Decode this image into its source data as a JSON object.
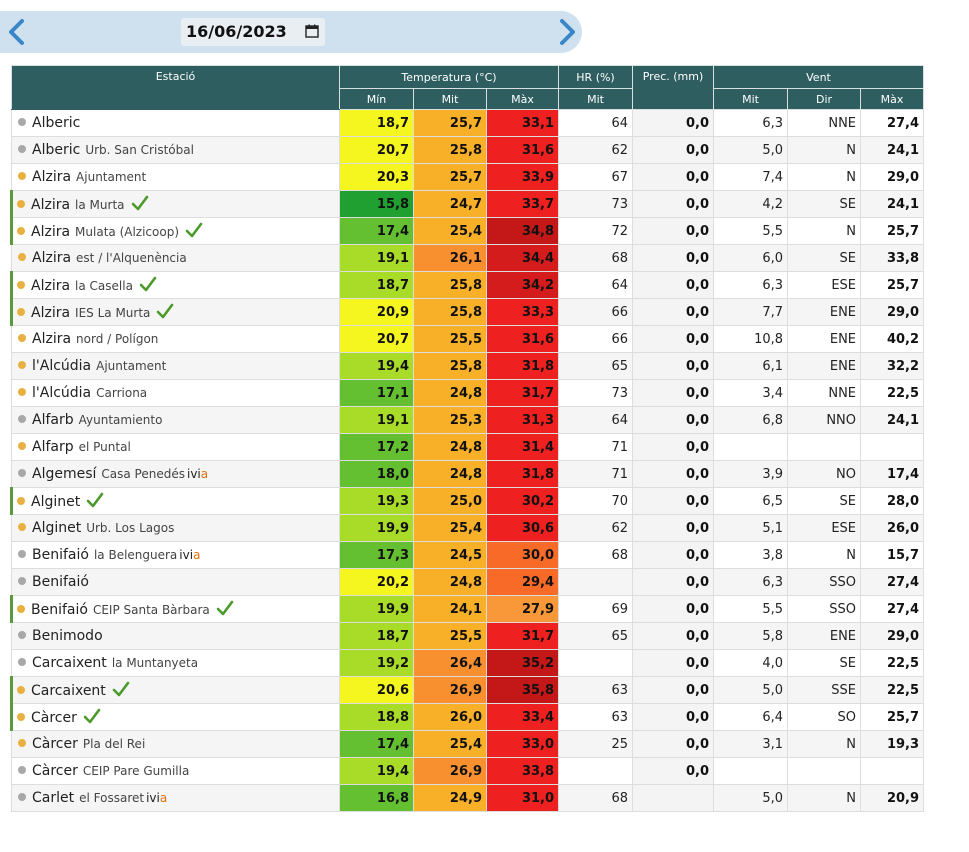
{
  "nav": {
    "date_value": "16/06/2023",
    "prev_icon": "chevron-left-icon",
    "next_icon": "chevron-right-icon",
    "calendar_icon": "calendar-icon"
  },
  "table": {
    "headers": {
      "station": "Estació",
      "temperature": "Temperatura (°C)",
      "hr": "HR (%)",
      "prec": "Prec. (mm)",
      "wind": "Vent"
    },
    "subheaders": {
      "tmin": "Mín",
      "tmit": "Mit",
      "tmax": "Màx",
      "hrmit": "Mit",
      "wmit": "Mit",
      "wdir": "Dir",
      "wmax": "Màx"
    },
    "colors": {
      "tmin": [
        "#f5f520",
        "#f5f520",
        "#f5f520",
        "#20a030",
        "#64c030",
        "#a8dc28",
        "#a8dc28",
        "#f5f520",
        "#f5f520",
        "#a8dc28",
        "#64c030",
        "#a8dc28",
        "#64c030",
        "#64c030",
        "#a8dc28",
        "#a8dc28",
        "#64c030",
        "#f5f520",
        "#a8dc28",
        "#a8dc28",
        "#a8dc28",
        "#f5f520",
        "#a8dc28",
        "#64c030",
        "#a8dc28",
        "#64c030"
      ],
      "tmit": [
        "#f8b028",
        "#f8b028",
        "#f8b028",
        "#f8b028",
        "#f8b028",
        "#f89030",
        "#f8b028",
        "#f8b028",
        "#f8b028",
        "#f8b028",
        "#f8b028",
        "#f8b028",
        "#f8b028",
        "#f8b028",
        "#f8b028",
        "#f8b028",
        "#f8b028",
        "#f8b028",
        "#f8b028",
        "#f8b028",
        "#f89030",
        "#f89030",
        "#f8b028",
        "#f8b028",
        "#f89030",
        "#f8b028"
      ],
      "tmax": [
        "#ee2020",
        "#ee2020",
        "#ee2020",
        "#ee2020",
        "#c41818",
        "#d41c1c",
        "#d41c1c",
        "#ee2020",
        "#ee2020",
        "#ee2020",
        "#ee2020",
        "#ee2020",
        "#ee2020",
        "#ee2020",
        "#ee2020",
        "#ee2020",
        "#f86a28",
        "#f86a28",
        "#f89838",
        "#ee2020",
        "#c41818",
        "#c41818",
        "#ee2020",
        "#ee2020",
        "#ee2020",
        "#ee2020"
      ]
    },
    "rows": [
      {
        "dot": "gray",
        "marked": false,
        "check": false,
        "name": "Alberic",
        "sub": "",
        "ivia": false,
        "tmin": "18,7",
        "tmit": "25,7",
        "tmax": "33,1",
        "hr": "64",
        "prec": "0,0",
        "wmit": "6,3",
        "wdir": "NNE",
        "wmax": "27,4"
      },
      {
        "dot": "gray",
        "marked": false,
        "check": false,
        "name": "Alberic",
        "sub": "Urb. San Cristóbal",
        "ivia": false,
        "tmin": "20,7",
        "tmit": "25,8",
        "tmax": "31,6",
        "hr": "62",
        "prec": "0,0",
        "wmit": "5,0",
        "wdir": "N",
        "wmax": "24,1"
      },
      {
        "dot": "orange",
        "marked": false,
        "check": false,
        "name": "Alzira",
        "sub": "Ajuntament",
        "ivia": false,
        "tmin": "20,3",
        "tmit": "25,7",
        "tmax": "33,9",
        "hr": "67",
        "prec": "0,0",
        "wmit": "7,4",
        "wdir": "N",
        "wmax": "29,0"
      },
      {
        "dot": "orange",
        "marked": true,
        "check": true,
        "name": "Alzira",
        "sub": "la Murta",
        "ivia": false,
        "tmin": "15,8",
        "tmit": "24,7",
        "tmax": "33,7",
        "hr": "73",
        "prec": "0,0",
        "wmit": "4,2",
        "wdir": "SE",
        "wmax": "24,1"
      },
      {
        "dot": "orange",
        "marked": true,
        "check": true,
        "name": "Alzira",
        "sub": "Mulata (Alzicoop)",
        "ivia": false,
        "tmin": "17,4",
        "tmit": "25,4",
        "tmax": "34,8",
        "hr": "72",
        "prec": "0,0",
        "wmit": "5,5",
        "wdir": "N",
        "wmax": "25,7"
      },
      {
        "dot": "orange",
        "marked": false,
        "check": false,
        "name": "Alzira",
        "sub": "est / l'Alquenència",
        "ivia": false,
        "tmin": "19,1",
        "tmit": "26,1",
        "tmax": "34,4",
        "hr": "68",
        "prec": "0,0",
        "wmit": "6,0",
        "wdir": "SE",
        "wmax": "33,8"
      },
      {
        "dot": "orange",
        "marked": true,
        "check": true,
        "name": "Alzira",
        "sub": "la Casella",
        "ivia": false,
        "tmin": "18,7",
        "tmit": "25,8",
        "tmax": "34,2",
        "hr": "64",
        "prec": "0,0",
        "wmit": "6,3",
        "wdir": "ESE",
        "wmax": "25,7"
      },
      {
        "dot": "orange",
        "marked": true,
        "check": true,
        "name": "Alzira",
        "sub": "IES La Murta",
        "ivia": false,
        "tmin": "20,9",
        "tmit": "25,8",
        "tmax": "33,3",
        "hr": "66",
        "prec": "0,0",
        "wmit": "7,7",
        "wdir": "ENE",
        "wmax": "29,0"
      },
      {
        "dot": "orange",
        "marked": false,
        "check": false,
        "name": "Alzira",
        "sub": "nord / Polígon",
        "ivia": false,
        "tmin": "20,7",
        "tmit": "25,5",
        "tmax": "31,6",
        "hr": "66",
        "prec": "0,0",
        "wmit": "10,8",
        "wdir": "ENE",
        "wmax": "40,2"
      },
      {
        "dot": "orange",
        "marked": false,
        "check": false,
        "name": "l'Alcúdia",
        "sub": "Ajuntament",
        "ivia": false,
        "tmin": "19,4",
        "tmit": "25,8",
        "tmax": "31,8",
        "hr": "65",
        "prec": "0,0",
        "wmit": "6,1",
        "wdir": "ENE",
        "wmax": "32,2"
      },
      {
        "dot": "orange",
        "marked": false,
        "check": false,
        "name": "l'Alcúdia",
        "sub": "Carriona",
        "ivia": false,
        "tmin": "17,1",
        "tmit": "24,8",
        "tmax": "31,7",
        "hr": "73",
        "prec": "0,0",
        "wmit": "3,4",
        "wdir": "NNE",
        "wmax": "22,5"
      },
      {
        "dot": "gray",
        "marked": false,
        "check": false,
        "name": "Alfarb",
        "sub": "Ayuntamiento",
        "ivia": false,
        "tmin": "19,1",
        "tmit": "25,3",
        "tmax": "31,3",
        "hr": "64",
        "prec": "0,0",
        "wmit": "6,8",
        "wdir": "NNO",
        "wmax": "24,1"
      },
      {
        "dot": "orange",
        "marked": false,
        "check": false,
        "name": "Alfarp",
        "sub": "el Puntal",
        "ivia": false,
        "tmin": "17,2",
        "tmit": "24,8",
        "tmax": "31,4",
        "hr": "71",
        "prec": "0,0",
        "wmit": "",
        "wdir": "",
        "wmax": ""
      },
      {
        "dot": "gray",
        "marked": false,
        "check": false,
        "name": "Algemesí",
        "sub": "Casa Penedés",
        "ivia": true,
        "tmin": "18,0",
        "tmit": "24,8",
        "tmax": "31,8",
        "hr": "71",
        "prec": "0,0",
        "wmit": "3,9",
        "wdir": "NO",
        "wmax": "17,4"
      },
      {
        "dot": "orange",
        "marked": true,
        "check": true,
        "name": "Alginet",
        "sub": "",
        "ivia": false,
        "tmin": "19,3",
        "tmit": "25,0",
        "tmax": "30,2",
        "hr": "70",
        "prec": "0,0",
        "wmit": "6,5",
        "wdir": "SE",
        "wmax": "28,0"
      },
      {
        "dot": "orange",
        "marked": false,
        "check": false,
        "name": "Alginet",
        "sub": "Urb. Los Lagos",
        "ivia": false,
        "tmin": "19,9",
        "tmit": "25,4",
        "tmax": "30,6",
        "hr": "62",
        "prec": "0,0",
        "wmit": "5,1",
        "wdir": "ESE",
        "wmax": "26,0"
      },
      {
        "dot": "gray",
        "marked": false,
        "check": false,
        "name": "Benifaió",
        "sub": "la Belenguera",
        "ivia": true,
        "tmin": "17,3",
        "tmit": "24,5",
        "tmax": "30,0",
        "hr": "68",
        "prec": "0,0",
        "wmit": "3,8",
        "wdir": "N",
        "wmax": "15,7"
      },
      {
        "dot": "gray",
        "marked": false,
        "check": false,
        "name": "Benifaió",
        "sub": "",
        "ivia": false,
        "tmin": "20,2",
        "tmit": "24,8",
        "tmax": "29,4",
        "hr": "",
        "prec": "0,0",
        "wmit": "6,3",
        "wdir": "SSO",
        "wmax": "27,4"
      },
      {
        "dot": "orange",
        "marked": true,
        "check": true,
        "name": "Benifaió",
        "sub": "CEIP Santa Bàrbara",
        "ivia": false,
        "tmin": "19,9",
        "tmit": "24,1",
        "tmax": "27,9",
        "hr": "69",
        "prec": "0,0",
        "wmit": "5,5",
        "wdir": "SSO",
        "wmax": "27,4"
      },
      {
        "dot": "gray",
        "marked": false,
        "check": false,
        "name": "Benimodo",
        "sub": "",
        "ivia": false,
        "tmin": "18,7",
        "tmit": "25,5",
        "tmax": "31,7",
        "hr": "65",
        "prec": "0,0",
        "wmit": "5,8",
        "wdir": "ENE",
        "wmax": "29,0"
      },
      {
        "dot": "gray",
        "marked": false,
        "check": false,
        "name": "Carcaixent",
        "sub": "la Muntanyeta",
        "ivia": false,
        "tmin": "19,2",
        "tmit": "26,4",
        "tmax": "35,2",
        "hr": "",
        "prec": "0,0",
        "wmit": "4,0",
        "wdir": "SE",
        "wmax": "22,5"
      },
      {
        "dot": "orange",
        "marked": true,
        "check": true,
        "name": "Carcaixent",
        "sub": "",
        "ivia": false,
        "tmin": "20,6",
        "tmit": "26,9",
        "tmax": "35,8",
        "hr": "63",
        "prec": "0,0",
        "wmit": "5,0",
        "wdir": "SSE",
        "wmax": "22,5"
      },
      {
        "dot": "orange",
        "marked": true,
        "check": true,
        "name": "Càrcer",
        "sub": "",
        "ivia": false,
        "tmin": "18,8",
        "tmit": "26,0",
        "tmax": "33,4",
        "hr": "63",
        "prec": "0,0",
        "wmit": "6,4",
        "wdir": "SO",
        "wmax": "25,7"
      },
      {
        "dot": "orange",
        "marked": false,
        "check": false,
        "name": "Càrcer",
        "sub": "Pla del Rei",
        "ivia": false,
        "tmin": "17,4",
        "tmit": "25,4",
        "tmax": "33,0",
        "hr": "25",
        "prec": "0,0",
        "wmit": "3,1",
        "wdir": "N",
        "wmax": "19,3"
      },
      {
        "dot": "gray",
        "marked": false,
        "check": false,
        "name": "Càrcer",
        "sub": "CEIP Pare Gumilla",
        "ivia": false,
        "tmin": "19,4",
        "tmit": "26,9",
        "tmax": "33,8",
        "hr": "",
        "prec": "0,0",
        "wmit": "",
        "wdir": "",
        "wmax": ""
      },
      {
        "dot": "gray",
        "marked": false,
        "check": false,
        "name": "Carlet",
        "sub": "el Fossaret",
        "ivia": true,
        "tmin": "16,8",
        "tmit": "24,9",
        "tmax": "31,0",
        "hr": "68",
        "prec": "",
        "wmit": "5,0",
        "wdir": "N",
        "wmax": "20,9"
      }
    ],
    "ivia_label": {
      "prefix": "ivi",
      "accent": "a"
    }
  }
}
